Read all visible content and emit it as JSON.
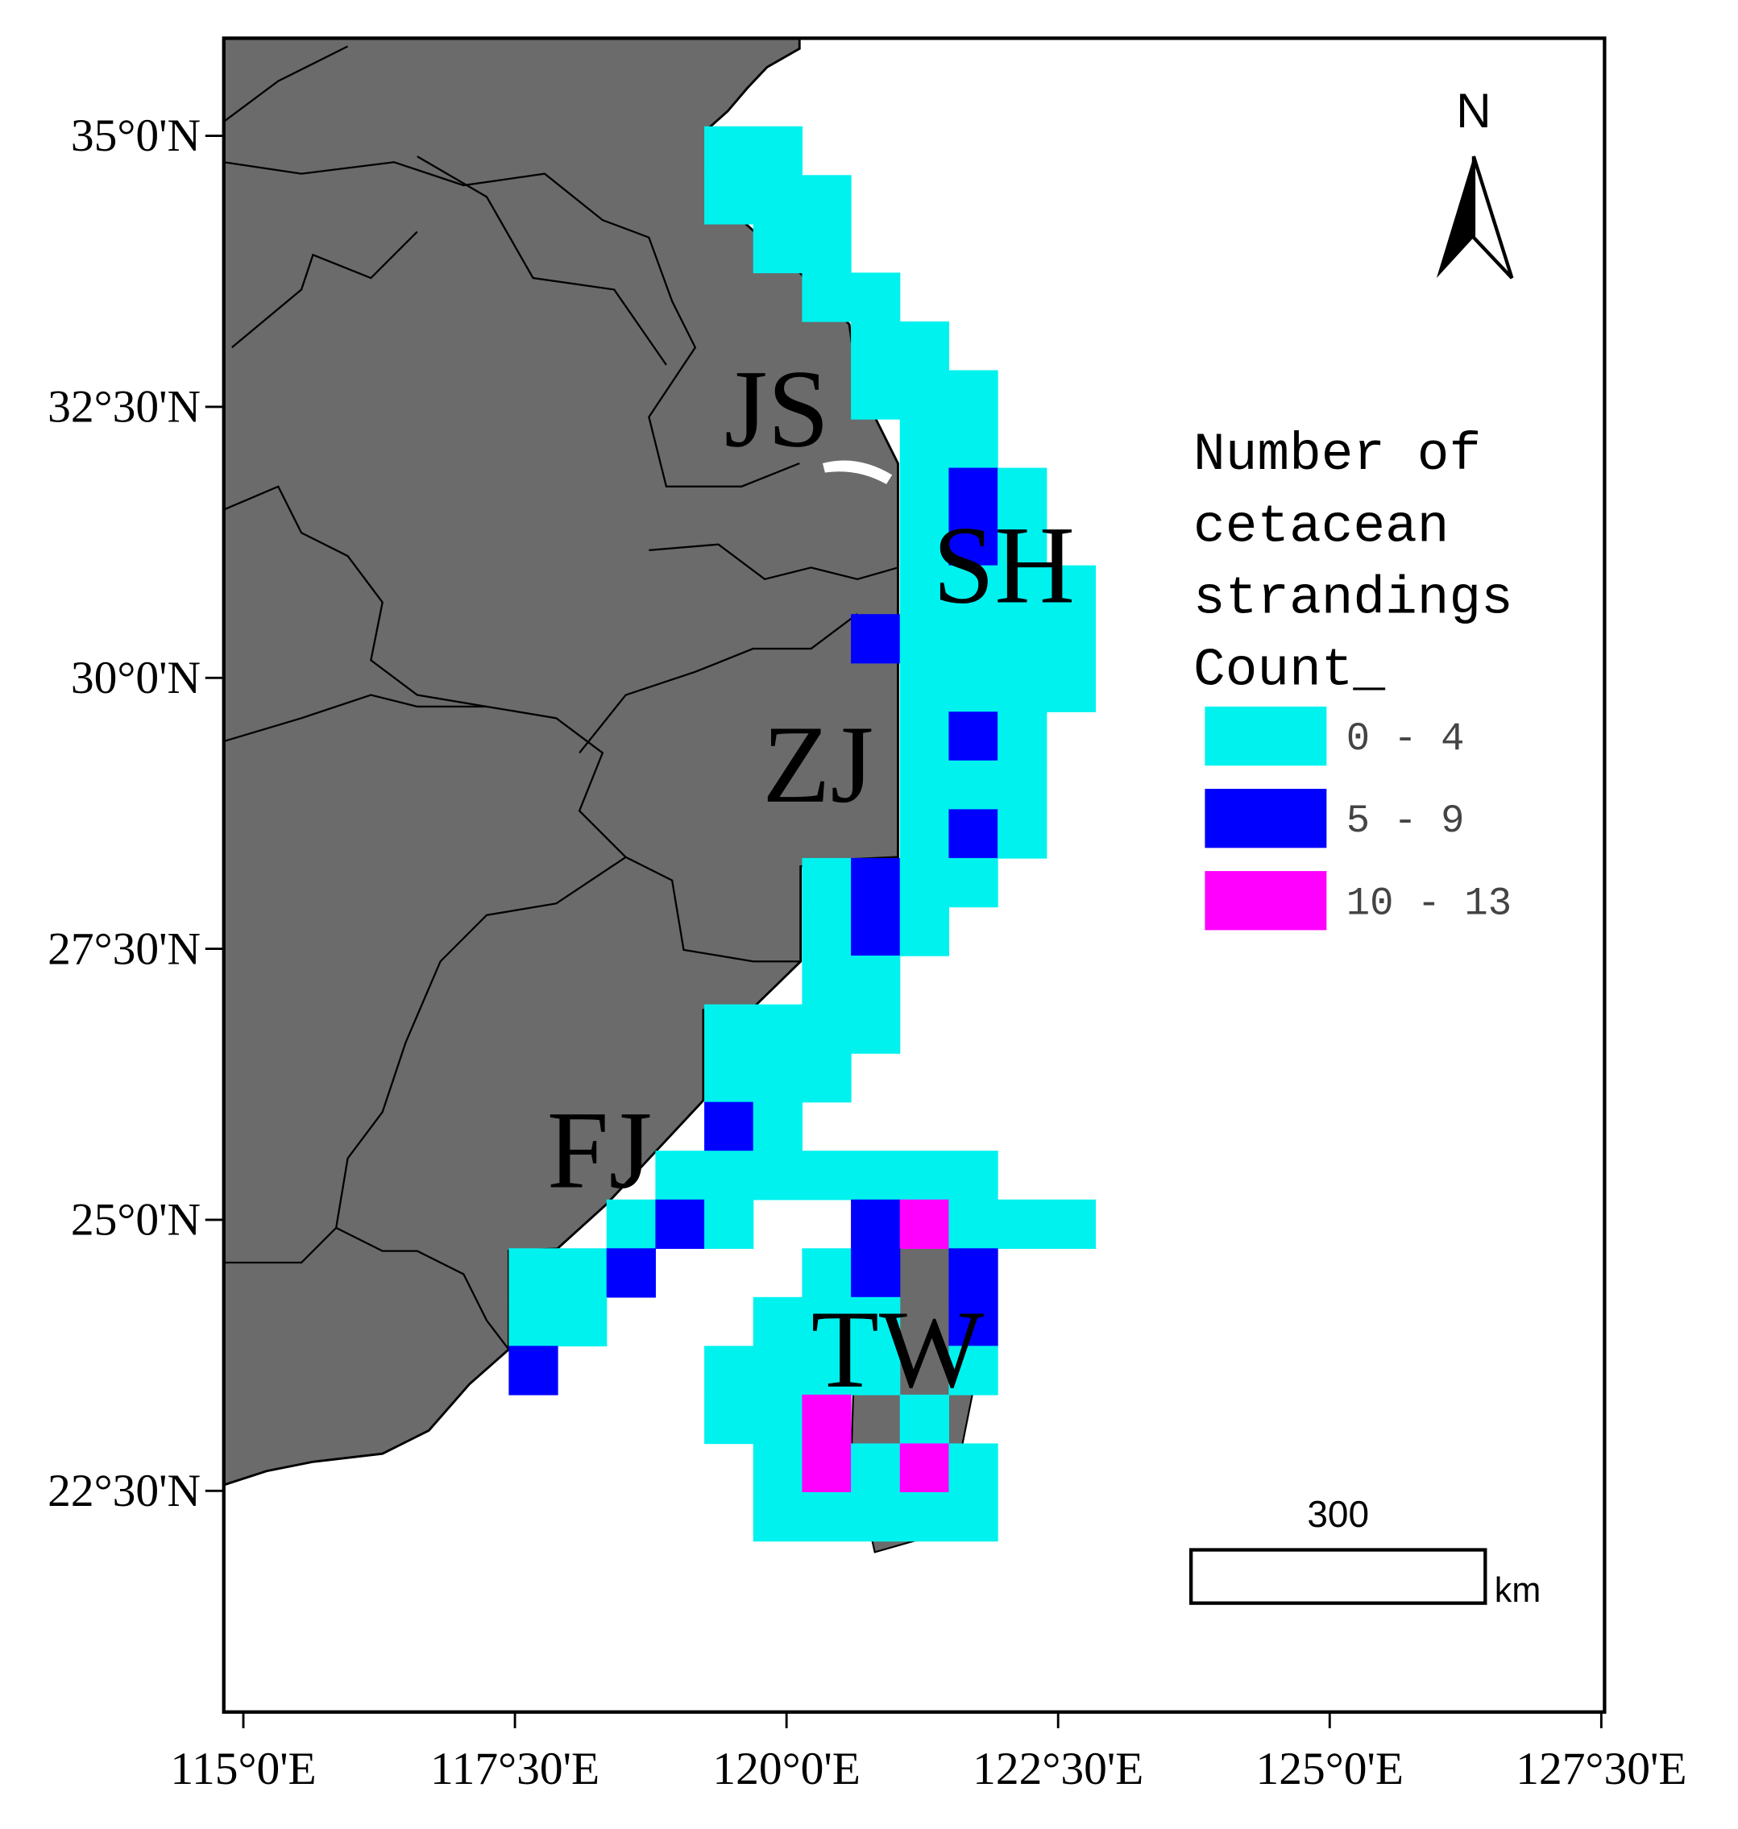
{
  "map": {
    "xlim": [
      114.82,
      127.53
    ],
    "ylim": [
      20.46,
      35.9
    ],
    "xticks": [
      {
        "value": 115,
        "label": "115°0'E"
      },
      {
        "value": 117.5,
        "label": "117°30'E"
      },
      {
        "value": 120,
        "label": "120°0'E"
      },
      {
        "value": 122.5,
        "label": "122°30'E"
      },
      {
        "value": 125,
        "label": "125°0'E"
      },
      {
        "value": 127.5,
        "label": "127°30'E"
      }
    ],
    "yticks": [
      {
        "value": 35,
        "label": "35°0'N"
      },
      {
        "value": 32.5,
        "label": "32°30'N"
      },
      {
        "value": 30,
        "label": "30°0'N"
      },
      {
        "value": 27.5,
        "label": "27°30'N"
      },
      {
        "value": 25,
        "label": "25°0'N"
      },
      {
        "value": 22.5,
        "label": "22°30'N"
      }
    ],
    "regions": [
      "JS",
      "SH",
      "ZJ",
      "FJ",
      "TW"
    ],
    "legend": {
      "title": [
        "Number of",
        "cetacean",
        "strandings",
        "Count_"
      ],
      "classes": [
        {
          "label": "0 - 4",
          "color": "#00f2ef"
        },
        {
          "label": "5 - 9",
          "color": "#0000ff"
        },
        {
          "label": "10 - 13",
          "color": "#ff00ff"
        }
      ]
    },
    "north": "N",
    "scale_bar": {
      "label": "300",
      "unit": "km"
    },
    "cells": [
      [
        119.47,
        34.86,
        0
      ],
      [
        119.92,
        34.86,
        0
      ],
      [
        119.47,
        34.41,
        0
      ],
      [
        119.92,
        34.41,
        0
      ],
      [
        120.37,
        34.41,
        0
      ],
      [
        119.92,
        33.96,
        0
      ],
      [
        120.37,
        33.96,
        0
      ],
      [
        120.37,
        33.51,
        0
      ],
      [
        120.82,
        33.51,
        0
      ],
      [
        120.82,
        33.06,
        0
      ],
      [
        121.27,
        33.06,
        0
      ],
      [
        120.82,
        32.61,
        0
      ],
      [
        121.27,
        32.61,
        0
      ],
      [
        121.72,
        32.61,
        0
      ],
      [
        121.27,
        32.16,
        0
      ],
      [
        121.72,
        32.16,
        0
      ],
      [
        121.27,
        31.71,
        0
      ],
      [
        121.72,
        31.71,
        1
      ],
      [
        122.17,
        31.71,
        0
      ],
      [
        121.27,
        31.26,
        0
      ],
      [
        121.72,
        31.26,
        1
      ],
      [
        122.17,
        31.26,
        0
      ],
      [
        121.27,
        30.81,
        0
      ],
      [
        121.72,
        30.81,
        0
      ],
      [
        122.17,
        30.81,
        0
      ],
      [
        122.62,
        30.81,
        0
      ],
      [
        120.82,
        30.36,
        1
      ],
      [
        121.27,
        30.36,
        0
      ],
      [
        121.72,
        30.36,
        0
      ],
      [
        122.17,
        30.36,
        0
      ],
      [
        122.62,
        30.36,
        0
      ],
      [
        121.27,
        29.91,
        0
      ],
      [
        121.72,
        29.91,
        0
      ],
      [
        122.17,
        29.91,
        0
      ],
      [
        122.62,
        29.91,
        0
      ],
      [
        121.27,
        29.46,
        0
      ],
      [
        121.72,
        29.46,
        1
      ],
      [
        122.17,
        29.46,
        0
      ],
      [
        121.27,
        29.01,
        0
      ],
      [
        121.72,
        29.01,
        0
      ],
      [
        122.17,
        29.01,
        0
      ],
      [
        121.27,
        28.56,
        0
      ],
      [
        121.72,
        28.56,
        1
      ],
      [
        122.17,
        28.56,
        0
      ],
      [
        120.37,
        28.11,
        0
      ],
      [
        120.82,
        28.11,
        1
      ],
      [
        121.27,
        28.11,
        0
      ],
      [
        121.72,
        28.11,
        0
      ],
      [
        120.37,
        27.66,
        0
      ],
      [
        120.82,
        27.66,
        1
      ],
      [
        121.27,
        27.66,
        0
      ],
      [
        120.37,
        27.21,
        0
      ],
      [
        120.82,
        27.21,
        0
      ],
      [
        119.47,
        26.76,
        0
      ],
      [
        119.92,
        26.76,
        0
      ],
      [
        120.37,
        26.76,
        0
      ],
      [
        120.82,
        26.76,
        0
      ],
      [
        119.47,
        26.31,
        0
      ],
      [
        119.92,
        26.31,
        0
      ],
      [
        120.37,
        26.31,
        0
      ],
      [
        119.47,
        25.86,
        1
      ],
      [
        119.92,
        25.86,
        0
      ],
      [
        119.02,
        25.41,
        0
      ],
      [
        119.47,
        25.41,
        0
      ],
      [
        119.92,
        25.41,
        0
      ],
      [
        120.37,
        25.41,
        0
      ],
      [
        120.82,
        25.41,
        0
      ],
      [
        121.27,
        25.41,
        0
      ],
      [
        121.72,
        25.41,
        0
      ],
      [
        118.57,
        24.96,
        0
      ],
      [
        119.02,
        24.96,
        1
      ],
      [
        119.47,
        24.96,
        0
      ],
      [
        120.82,
        24.96,
        1
      ],
      [
        121.27,
        24.96,
        2
      ],
      [
        121.72,
        24.96,
        0
      ],
      [
        122.17,
        24.96,
        0
      ],
      [
        122.62,
        24.96,
        0
      ],
      [
        117.67,
        24.51,
        0
      ],
      [
        118.12,
        24.51,
        0
      ],
      [
        118.57,
        24.51,
        1
      ],
      [
        120.37,
        24.51,
        0
      ],
      [
        120.82,
        24.51,
        1
      ],
      [
        121.72,
        24.51,
        1
      ],
      [
        117.67,
        24.06,
        0
      ],
      [
        118.12,
        24.06,
        0
      ],
      [
        119.92,
        24.06,
        0
      ],
      [
        120.37,
        24.06,
        0
      ],
      [
        120.82,
        24.06,
        0
      ],
      [
        121.72,
        24.06,
        1
      ],
      [
        117.67,
        23.61,
        1
      ],
      [
        119.47,
        23.61,
        0
      ],
      [
        119.92,
        23.61,
        0
      ],
      [
        120.37,
        23.61,
        0
      ],
      [
        120.82,
        23.61,
        0
      ],
      [
        121.72,
        23.61,
        0
      ],
      [
        119.47,
        23.16,
        0
      ],
      [
        119.92,
        23.16,
        0
      ],
      [
        120.37,
        23.16,
        2
      ],
      [
        121.27,
        23.16,
        0
      ],
      [
        119.92,
        22.71,
        0
      ],
      [
        120.37,
        22.71,
        2
      ],
      [
        120.82,
        22.71,
        0
      ],
      [
        121.27,
        22.71,
        2
      ],
      [
        121.72,
        22.71,
        0
      ],
      [
        119.92,
        22.26,
        0
      ],
      [
        120.37,
        22.26,
        0
      ],
      [
        120.82,
        22.26,
        0
      ],
      [
        121.27,
        22.26,
        0
      ],
      [
        121.72,
        22.26,
        0
      ]
    ]
  }
}
